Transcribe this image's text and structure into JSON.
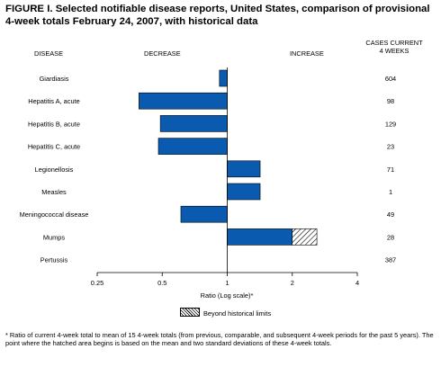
{
  "title": "FIGURE I. Selected notifiable disease reports, United States, comparison of provisional 4-week totals February 24, 2007, with historical data",
  "headers": {
    "disease": "DISEASE",
    "decrease": "DECREASE",
    "increase": "INCREASE",
    "cases_line1": "CASES CURRENT",
    "cases_line2": "4 WEEKS"
  },
  "legend": {
    "label": "Beyond historical limits"
  },
  "footnote": "* Ratio of current 4-week total to mean of 15 4-week totals (from previous, comparable, and subsequent 4-week periods for the past 5 years). The point where the hatched area begins is based on the mean and two standard deviations of these 4-week totals.",
  "colors": {
    "bar": "#0a5bb0",
    "bar_stroke": "#000000",
    "hatch": "#000000"
  },
  "chart_data": {
    "type": "bar",
    "orientation": "horizontal",
    "xscale": "log2",
    "xlim": [
      0.25,
      4
    ],
    "xticks": [
      0.25,
      0.5,
      1,
      2,
      4
    ],
    "xtick_labels": [
      "0.25",
      "0.5",
      "1",
      "2",
      "4"
    ],
    "xlabel": "Ratio (Log scale)*",
    "baseline": 1,
    "categories": [
      "Giardiasis",
      "Hepatitis A, acute",
      "Hepatitis B, acute",
      "Hepatitis C, acute",
      "Legionellosis",
      "Measles",
      "Meningococcal disease",
      "Mumps",
      "Pertussis"
    ],
    "values": [
      0.92,
      0.39,
      0.49,
      0.48,
      1.42,
      1.42,
      0.61,
      2.0,
      null
    ],
    "beyond_limits_to": [
      null,
      null,
      null,
      null,
      null,
      null,
      null,
      2.6,
      null
    ],
    "cases": [
      "604",
      "98",
      "129",
      "23",
      "71",
      "1",
      "49",
      "28",
      "387"
    ]
  }
}
